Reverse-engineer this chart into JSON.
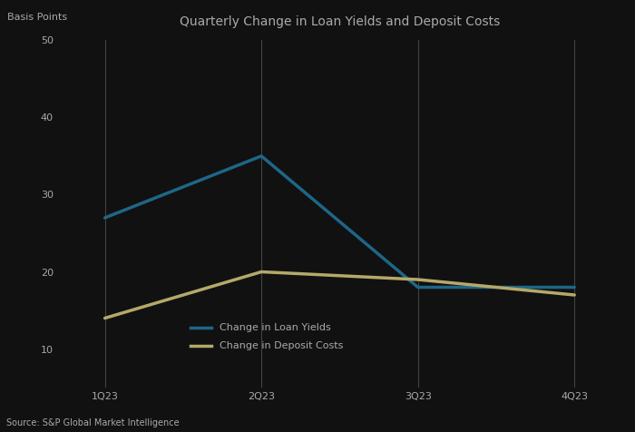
{
  "title": "Quarterly Change in Loan Yields and Deposit Costs",
  "ylabel": "Basis Points",
  "source": "Source: S&P Global Market Intelligence",
  "x_labels": [
    "1Q23",
    "2Q23",
    "3Q23",
    "4Q23"
  ],
  "loan_yields": [
    27,
    35,
    18,
    18
  ],
  "deposit_costs": [
    14,
    20,
    19,
    17
  ],
  "loan_color": "#1e6688",
  "deposit_color": "#b5a96a",
  "background_color": "#111111",
  "text_color": "#aaaaaa",
  "grid_color": "#444444",
  "ylim": [
    5,
    50
  ],
  "yticks": [
    50,
    40,
    30,
    20,
    10
  ],
  "legend_loan": "Change in Loan Yields",
  "legend_deposit": "Change in Deposit Costs",
  "line_width": 2.5,
  "title_fontsize": 10,
  "label_fontsize": 8,
  "tick_fontsize": 8,
  "source_fontsize": 7
}
